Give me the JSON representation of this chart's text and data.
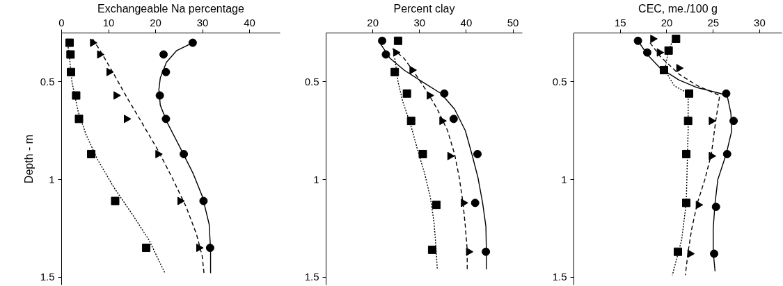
{
  "chart_data": [
    {
      "type": "scatter",
      "xlabel": "Exchangeable Na percentage",
      "ylabel": "Depth - m",
      "xlim": [
        0,
        46.5
      ],
      "xticks": [
        0,
        10,
        20,
        30,
        40
      ],
      "ylim": [
        1.54,
        0.25
      ],
      "yticks": [
        0.5,
        1,
        1.5
      ],
      "grid": false,
      "series": [
        {
          "marker": "circle",
          "color": "#000000",
          "x": [
            27.9,
            21.7,
            22.2,
            20.9,
            22.2,
            26.0,
            30.2,
            31.6
          ],
          "values": [
            0.3,
            0.36,
            0.45,
            0.57,
            0.69,
            0.87,
            1.11,
            1.35
          ]
        },
        {
          "marker": "triangle",
          "color": "#000000",
          "x": [
            6.6,
            8.1,
            10.1,
            11.6,
            13.8,
            20.5,
            25.2,
            29.2
          ],
          "values": [
            0.3,
            0.36,
            0.45,
            0.57,
            0.69,
            0.87,
            1.11,
            1.35
          ]
        },
        {
          "marker": "square",
          "color": "#000000",
          "x": [
            1.7,
            1.9,
            2.0,
            3.1,
            3.7,
            6.3,
            11.4,
            18.0
          ],
          "values": [
            0.3,
            0.36,
            0.45,
            0.57,
            0.69,
            0.87,
            1.11,
            1.35
          ]
        },
        {
          "type": "line",
          "line_style": "solid",
          "color": "#000000",
          "x": [
            27.9,
            24.5,
            22.3,
            21.0,
            20.7,
            21.0,
            22.5,
            25.5,
            28.0,
            30.0,
            31.4,
            31.7,
            31.7
          ],
          "values": [
            0.3,
            0.34,
            0.4,
            0.48,
            0.54,
            0.62,
            0.71,
            0.85,
            0.97,
            1.09,
            1.23,
            1.36,
            1.48
          ]
        },
        {
          "type": "line",
          "line_style": "dashed",
          "color": "#000000",
          "x": [
            6.6,
            8.7,
            11.1,
            13.9,
            17.1,
            20.5,
            23.5,
            26.5,
            28.7,
            29.9,
            30.3
          ],
          "values": [
            0.28,
            0.36,
            0.46,
            0.58,
            0.71,
            0.85,
            0.99,
            1.14,
            1.28,
            1.39,
            1.48
          ]
        },
        {
          "type": "line",
          "line_style": "dotted",
          "color": "#000000",
          "x": [
            1.2,
            1.7,
            2.2,
            3.5,
            5.2,
            7.7,
            11.1,
            15.1,
            18.6,
            22.0
          ],
          "values": [
            0.28,
            0.38,
            0.5,
            0.65,
            0.77,
            0.9,
            1.04,
            1.18,
            1.31,
            1.48
          ]
        }
      ]
    },
    {
      "type": "scatter",
      "xlabel": "Percent clay",
      "xlim": [
        10,
        52
      ],
      "xticks": [
        20,
        30,
        40,
        50
      ],
      "ylim": [
        1.54,
        0.25
      ],
      "yticks": [
        0.5,
        1,
        1.5
      ],
      "grid": false,
      "series": [
        {
          "marker": "circle",
          "color": "#000000",
          "x": [
            22.0,
            22.8,
            35.3,
            37.3,
            42.4,
            41.9,
            44.2
          ],
          "values": [
            0.29,
            0.36,
            0.56,
            0.69,
            0.87,
            1.12,
            1.37
          ]
        },
        {
          "marker": "triangle",
          "color": "#000000",
          "x": [
            24.9,
            28.4,
            32.1,
            34.8,
            36.5,
            39.4,
            40.5
          ],
          "values": [
            0.35,
            0.44,
            0.57,
            0.7,
            0.88,
            1.12,
            1.37
          ]
        },
        {
          "marker": "square",
          "color": "#000000",
          "x": [
            25.4,
            24.7,
            27.3,
            28.2,
            30.7,
            33.6,
            32.7
          ],
          "values": [
            0.29,
            0.45,
            0.56,
            0.7,
            0.87,
            1.13,
            1.36
          ]
        },
        {
          "type": "line",
          "line_style": "solid",
          "color": "#000000",
          "x": [
            21.5,
            23.7,
            26.7,
            30.6,
            34.6,
            37.5,
            39.8,
            41.2,
            42.5,
            43.5,
            44.2,
            44.3,
            44.3
          ],
          "values": [
            0.3,
            0.38,
            0.44,
            0.5,
            0.56,
            0.64,
            0.75,
            0.87,
            0.99,
            1.12,
            1.24,
            1.36,
            1.46
          ]
        },
        {
          "type": "line",
          "line_style": "dashed",
          "color": "#000000",
          "x": [
            24.2,
            26.7,
            29.1,
            31.6,
            33.8,
            36.0,
            37.5,
            38.5,
            39.3,
            39.8,
            40.2,
            40.2
          ],
          "values": [
            0.33,
            0.38,
            0.46,
            0.55,
            0.64,
            0.75,
            0.87,
            0.99,
            1.12,
            1.24,
            1.36,
            1.46
          ]
        },
        {
          "type": "line",
          "line_style": "dotted",
          "color": "#000000",
          "x": [
            24.7,
            25.4,
            26.4,
            28.1,
            29.6,
            31.1,
            32.3,
            33.1,
            33.5,
            33.8
          ],
          "values": [
            0.38,
            0.5,
            0.6,
            0.72,
            0.85,
            0.97,
            1.09,
            1.22,
            1.34,
            1.46
          ]
        }
      ]
    },
    {
      "type": "scatter",
      "xlabel": "CEC, me./100 g",
      "xlim": [
        10,
        32.4
      ],
      "xticks": [
        15,
        20,
        25,
        30
      ],
      "ylim": [
        1.54,
        0.25
      ],
      "yticks": [
        0.5,
        1,
        1.5
      ],
      "grid": false,
      "series": [
        {
          "marker": "circle",
          "color": "#000000",
          "x": [
            16.9,
            17.9,
            26.4,
            27.2,
            26.5,
            25.3,
            25.1
          ],
          "values": [
            0.29,
            0.35,
            0.56,
            0.7,
            0.87,
            1.14,
            1.38
          ]
        },
        {
          "marker": "triangle",
          "color": "#000000",
          "x": [
            18.5,
            19.2,
            21.3,
            24.8,
            24.8,
            23.4,
            22.5
          ],
          "values": [
            0.28,
            0.35,
            0.43,
            0.7,
            0.88,
            1.13,
            1.38
          ]
        },
        {
          "marker": "square",
          "color": "#000000",
          "x": [
            21.0,
            20.2,
            19.7,
            22.4,
            22.3,
            22.1,
            22.1,
            21.2
          ],
          "values": [
            0.28,
            0.34,
            0.44,
            0.56,
            0.7,
            0.87,
            1.12,
            1.37
          ]
        },
        {
          "type": "line",
          "line_style": "solid",
          "color": "#000000",
          "x": [
            16.9,
            17.9,
            19.3,
            21.3,
            23.3,
            25.8,
            26.5,
            26.9,
            27.0,
            26.4,
            25.5,
            25.2,
            25.0,
            25.0,
            25.2
          ],
          "values": [
            0.29,
            0.36,
            0.43,
            0.49,
            0.53,
            0.56,
            0.57,
            0.66,
            0.75,
            0.87,
            1.0,
            1.12,
            1.25,
            1.37,
            1.47
          ]
        },
        {
          "type": "line",
          "line_style": "dashed",
          "color": "#000000",
          "x": [
            18.2,
            19.3,
            21.3,
            23.3,
            25.7,
            25.3,
            24.8,
            24.1,
            23.3,
            22.7,
            22.3,
            22.0
          ],
          "values": [
            0.3,
            0.37,
            0.46,
            0.52,
            0.57,
            0.69,
            0.87,
            1.0,
            1.12,
            1.25,
            1.37,
            1.49
          ]
        },
        {
          "type": "line",
          "line_style": "dotted",
          "color": "#000000",
          "x": [
            20.6,
            20.1,
            19.8,
            20.8,
            22.3,
            22.3,
            22.2,
            22.1,
            21.6,
            20.6
          ],
          "values": [
            0.29,
            0.36,
            0.44,
            0.52,
            0.56,
            0.75,
            0.93,
            1.12,
            1.31,
            1.49
          ]
        }
      ]
    }
  ]
}
